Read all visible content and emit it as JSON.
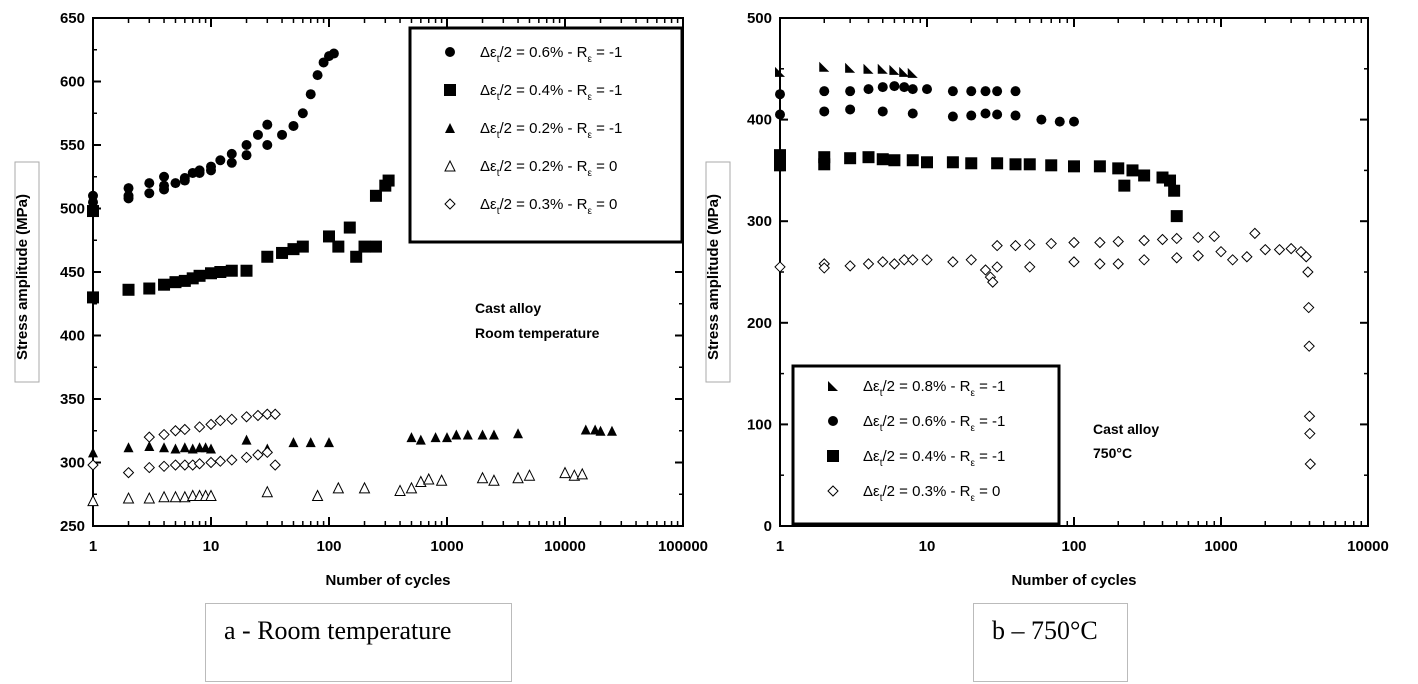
{
  "chart_data": [
    {
      "id": "a",
      "type": "scatter",
      "xlabel": "Number of cycles",
      "ylabel": "Stress amplitude (MPa)",
      "xscale": "log",
      "xlim": [
        1,
        100000
      ],
      "ylim": [
        250,
        650
      ],
      "xticks": [
        "1",
        "10",
        "100",
        "1000",
        "10000",
        "100000"
      ],
      "yticks": [
        "250",
        "300",
        "350",
        "400",
        "450",
        "500",
        "550",
        "600",
        "650"
      ],
      "annotation": [
        "Cast alloy",
        "Room temperature"
      ],
      "legend_position": "top-right",
      "series": [
        {
          "name": "Δεt/2 = 0.6% - Rε = -1",
          "marker": "filled-circle",
          "points": [
            [
              1,
              510
            ],
            [
              2,
              508
            ],
            [
              2,
              516
            ],
            [
              3,
              512
            ],
            [
              3,
              520
            ],
            [
              4,
              515
            ],
            [
              4,
              525
            ],
            [
              5,
              520
            ],
            [
              6,
              522
            ],
            [
              7,
              528
            ],
            [
              8,
              530
            ],
            [
              10,
              533
            ],
            [
              12,
              538
            ],
            [
              15,
              543
            ],
            [
              20,
              550
            ],
            [
              25,
              558
            ],
            [
              30,
              566
            ],
            [
              1,
              505
            ],
            [
              2,
              510
            ],
            [
              4,
              518
            ],
            [
              6,
              524
            ],
            [
              8,
              528
            ],
            [
              10,
              530
            ],
            [
              15,
              536
            ],
            [
              20,
              542
            ],
            [
              30,
              550
            ],
            [
              40,
              558
            ],
            [
              50,
              565
            ],
            [
              60,
              575
            ],
            [
              70,
              590
            ],
            [
              80,
              605
            ],
            [
              90,
              615
            ],
            [
              100,
              620
            ],
            [
              110,
              622
            ]
          ]
        },
        {
          "name": "Δεt/2 = 0.4% - Rε = -1",
          "marker": "filled-square",
          "points": [
            [
              1,
              498
            ],
            [
              1,
              430
            ],
            [
              2,
              436
            ],
            [
              3,
              437
            ],
            [
              4,
              440
            ],
            [
              5,
              442
            ],
            [
              6,
              443
            ],
            [
              7,
              445
            ],
            [
              8,
              447
            ],
            [
              10,
              449
            ],
            [
              12,
              450
            ],
            [
              15,
              451
            ],
            [
              20,
              451
            ],
            [
              30,
              462
            ],
            [
              40,
              465
            ],
            [
              50,
              468
            ],
            [
              60,
              470
            ],
            [
              100,
              478
            ],
            [
              120,
              470
            ],
            [
              150,
              485
            ],
            [
              170,
              462
            ],
            [
              200,
              470
            ],
            [
              250,
              470
            ],
            [
              250,
              510
            ],
            [
              300,
              518
            ],
            [
              320,
              522
            ]
          ]
        },
        {
          "name": "Δεt/2 = 0.2% - Rε = -1",
          "marker": "filled-triangle",
          "points": [
            [
              1,
              308
            ],
            [
              2,
              312
            ],
            [
              3,
              313
            ],
            [
              4,
              312
            ],
            [
              5,
              311
            ],
            [
              6,
              312
            ],
            [
              7,
              311
            ],
            [
              8,
              312
            ],
            [
              9,
              312
            ],
            [
              10,
              311
            ],
            [
              20,
              318
            ],
            [
              30,
              311
            ],
            [
              50,
              316
            ],
            [
              70,
              316
            ],
            [
              100,
              316
            ],
            [
              500,
              320
            ],
            [
              600,
              318
            ],
            [
              800,
              320
            ],
            [
              1000,
              320
            ],
            [
              1200,
              322
            ],
            [
              1500,
              322
            ],
            [
              2000,
              322
            ],
            [
              2500,
              322
            ],
            [
              4000,
              323
            ],
            [
              15000,
              326
            ],
            [
              18000,
              326
            ],
            [
              20000,
              325
            ],
            [
              25000,
              325
            ]
          ]
        },
        {
          "name": "Δεt/2 = 0.2% - Rε = 0",
          "marker": "open-triangle",
          "points": [
            [
              1,
              270
            ],
            [
              2,
              272
            ],
            [
              3,
              272
            ],
            [
              4,
              273
            ],
            [
              5,
              273
            ],
            [
              6,
              273
            ],
            [
              7,
              274
            ],
            [
              8,
              274
            ],
            [
              9,
              274
            ],
            [
              10,
              274
            ],
            [
              30,
              277
            ],
            [
              80,
              274
            ],
            [
              120,
              280
            ],
            [
              200,
              280
            ],
            [
              400,
              278
            ],
            [
              500,
              280
            ],
            [
              600,
              285
            ],
            [
              700,
              287
            ],
            [
              900,
              286
            ],
            [
              2000,
              288
            ],
            [
              2500,
              286
            ],
            [
              4000,
              288
            ],
            [
              5000,
              290
            ],
            [
              10000,
              292
            ],
            [
              12000,
              290
            ],
            [
              14000,
              291
            ]
          ]
        },
        {
          "name": "Δεt/2 = 0.3% - Rε = 0",
          "marker": "open-diamond",
          "points": [
            [
              1,
              298
            ],
            [
              2,
              292
            ],
            [
              3,
              296
            ],
            [
              4,
              297
            ],
            [
              5,
              298
            ],
            [
              6,
              298
            ],
            [
              7,
              298
            ],
            [
              8,
              299
            ],
            [
              10,
              300
            ],
            [
              12,
              301
            ],
            [
              15,
              302
            ],
            [
              20,
              304
            ],
            [
              25,
              306
            ],
            [
              30,
              308
            ],
            [
              35,
              298
            ],
            [
              3,
              320
            ],
            [
              4,
              322
            ],
            [
              5,
              325
            ],
            [
              6,
              326
            ],
            [
              8,
              328
            ],
            [
              10,
              330
            ],
            [
              12,
              333
            ],
            [
              15,
              334
            ],
            [
              20,
              336
            ],
            [
              25,
              337
            ],
            [
              30,
              338
            ],
            [
              35,
              338
            ]
          ]
        }
      ]
    },
    {
      "id": "b",
      "type": "scatter",
      "xlabel": "Number of cycles",
      "ylabel": "Stress amplitude (MPa)",
      "xscale": "log",
      "xlim": [
        1,
        10000
      ],
      "ylim": [
        0,
        500
      ],
      "xticks": [
        "1",
        "10",
        "100",
        "1000",
        "10000"
      ],
      "yticks": [
        "0",
        "100",
        "200",
        "300",
        "400",
        "500"
      ],
      "annotation": [
        "Cast alloy",
        "750°C"
      ],
      "legend_position": "bottom-left",
      "series": [
        {
          "name": "Δεt/2 = 0.8% - Rε = -1",
          "marker": "filled-right-triangle",
          "points": [
            [
              1,
              447
            ],
            [
              2,
              452
            ],
            [
              3,
              451
            ],
            [
              4,
              450
            ],
            [
              5,
              450
            ],
            [
              6,
              449
            ],
            [
              7,
              447
            ],
            [
              8,
              446
            ]
          ]
        },
        {
          "name": "Δεt/2 = 0.6% - Rε = -1",
          "marker": "filled-circle",
          "points": [
            [
              1,
              425
            ],
            [
              1,
              405
            ],
            [
              2,
              428
            ],
            [
              2,
              408
            ],
            [
              3,
              428
            ],
            [
              3,
              410
            ],
            [
              4,
              430
            ],
            [
              5,
              432
            ],
            [
              6,
              433
            ],
            [
              7,
              432
            ],
            [
              8,
              430
            ],
            [
              10,
              430
            ],
            [
              15,
              428
            ],
            [
              20,
              428
            ],
            [
              25,
              428
            ],
            [
              30,
              428
            ],
            [
              40,
              428
            ],
            [
              5,
              408
            ],
            [
              8,
              406
            ],
            [
              15,
              403
            ],
            [
              20,
              404
            ],
            [
              25,
              406
            ],
            [
              30,
              405
            ],
            [
              40,
              404
            ],
            [
              60,
              400
            ],
            [
              80,
              398
            ],
            [
              100,
              398
            ]
          ]
        },
        {
          "name": "Δεt/2 = 0.4% - Rε = -1",
          "marker": "filled-square",
          "points": [
            [
              1,
              365
            ],
            [
              1,
              355
            ],
            [
              2,
              363
            ],
            [
              2,
              356
            ],
            [
              3,
              362
            ],
            [
              4,
              363
            ],
            [
              5,
              361
            ],
            [
              6,
              360
            ],
            [
              8,
              360
            ],
            [
              10,
              358
            ],
            [
              15,
              358
            ],
            [
              20,
              357
            ],
            [
              30,
              357
            ],
            [
              40,
              356
            ],
            [
              50,
              356
            ],
            [
              70,
              355
            ],
            [
              100,
              354
            ],
            [
              150,
              354
            ],
            [
              200,
              352
            ],
            [
              220,
              335
            ],
            [
              250,
              350
            ],
            [
              300,
              345
            ],
            [
              400,
              343
            ],
            [
              450,
              340
            ],
            [
              480,
              330
            ],
            [
              500,
              305
            ]
          ]
        },
        {
          "name": "Δεt/2 = 0.3% - Rε = 0",
          "marker": "open-diamond",
          "points": [
            [
              1,
              255
            ],
            [
              2,
              258
            ],
            [
              2,
              254
            ],
            [
              3,
              256
            ],
            [
              4,
              258
            ],
            [
              5,
              260
            ],
            [
              6,
              258
            ],
            [
              7,
              262
            ],
            [
              8,
              262
            ],
            [
              10,
              262
            ],
            [
              15,
              260
            ],
            [
              20,
              262
            ],
            [
              25,
              252
            ],
            [
              27,
              245
            ],
            [
              28,
              240
            ],
            [
              30,
              255
            ],
            [
              30,
              276
            ],
            [
              40,
              276
            ],
            [
              50,
              277
            ],
            [
              70,
              278
            ],
            [
              100,
              279
            ],
            [
              150,
              279
            ],
            [
              200,
              280
            ],
            [
              300,
              281
            ],
            [
              400,
              282
            ],
            [
              500,
              283
            ],
            [
              700,
              284
            ],
            [
              900,
              285
            ],
            [
              1000,
              270
            ],
            [
              1200,
              262
            ],
            [
              1500,
              265
            ],
            [
              1700,
              288
            ],
            [
              2000,
              272
            ],
            [
              2500,
              272
            ],
            [
              3000,
              273
            ],
            [
              3500,
              270
            ],
            [
              3800,
              265
            ],
            [
              3900,
              250
            ],
            [
              3950,
              215
            ],
            [
              3980,
              177
            ],
            [
              4000,
              108
            ],
            [
              4020,
              91
            ],
            [
              4050,
              61
            ],
            [
              50,
              255
            ],
            [
              100,
              260
            ],
            [
              150,
              258
            ],
            [
              200,
              258
            ],
            [
              300,
              262
            ],
            [
              500,
              264
            ],
            [
              700,
              266
            ]
          ]
        }
      ]
    }
  ],
  "captions": {
    "a": "a - Room temperature",
    "b": "b – 750°C"
  }
}
